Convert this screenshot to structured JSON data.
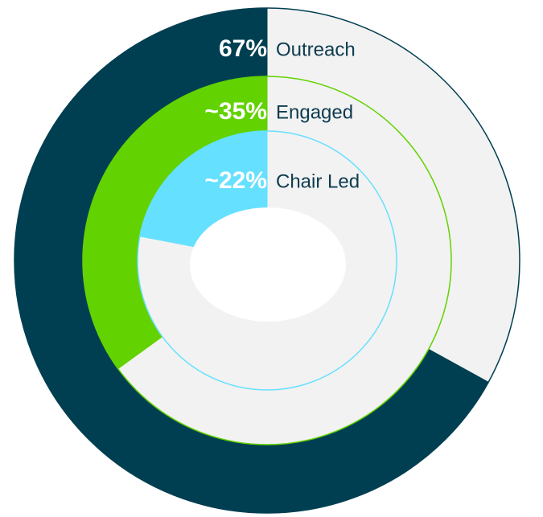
{
  "chart_data": {
    "type": "radial",
    "categories": [
      "Outreach",
      "Engaged",
      "Chair Led"
    ],
    "values": [
      67,
      35,
      22
    ],
    "value_labels": [
      "67%",
      "~35%",
      "~22%"
    ],
    "colors": [
      "#003f51",
      "#62d200",
      "#66e0ff"
    ],
    "track_color": "#f2f2f2"
  }
}
